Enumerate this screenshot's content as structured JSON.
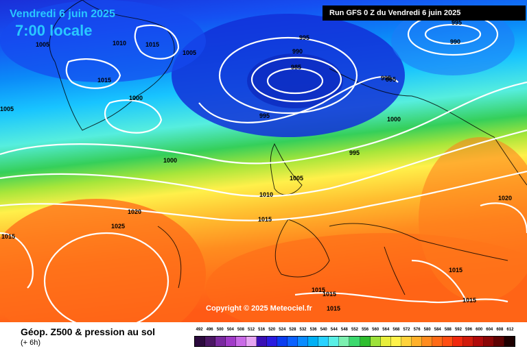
{
  "header": {
    "date": "Vendredi 6 juin 2025",
    "local_time": "7:00 locale",
    "run_info": "Run GFS 0 Z du Vendredi 6 juin 2025"
  },
  "map": {
    "copyright": "Copyright © 2025 Meteociel.fr",
    "isobar_labels": [
      "1005",
      "1005",
      "1010",
      "1015",
      "1005",
      "995",
      "990",
      "985",
      "995",
      "995",
      "1015",
      "995",
      "990",
      "995",
      "1000",
      "1000",
      "1000",
      "995",
      "1005",
      "1010",
      "1015",
      "1020",
      "1025",
      "1015",
      "1020",
      "1015",
      "1015",
      "1015",
      "1015",
      "1015"
    ]
  },
  "legend": {
    "title": "Géop. Z500 & pression au sol",
    "subtitle": "(+ 6h)",
    "scale_values": [
      "492",
      "496",
      "500",
      "504",
      "508",
      "512",
      "516",
      "520",
      "524",
      "528",
      "532",
      "536",
      "540",
      "544",
      "548",
      "552",
      "556",
      "560",
      "564",
      "568",
      "572",
      "576",
      "580",
      "584",
      "588",
      "592",
      "596",
      "600",
      "604",
      "608",
      "612"
    ],
    "scale_colors": [
      "#2b0a3d",
      "#4b1764",
      "#7a2aa0",
      "#a13bc8",
      "#c96ae6",
      "#e7a5f2",
      "#3a0fb5",
      "#2a1ce0",
      "#0b3df0",
      "#0b62ff",
      "#0a8cff",
      "#00b0f5",
      "#28d2ff",
      "#59efe5",
      "#7cf0b0",
      "#3cd96e",
      "#2fbe2f",
      "#9de23a",
      "#e8ef3c",
      "#fff24a",
      "#ffd23b",
      "#ffb02a",
      "#ff8c1f",
      "#ff6b17",
      "#ff4e12",
      "#f0290e",
      "#d11b0b",
      "#b00a0a",
      "#8a0606",
      "#5e0303",
      "#1e0000"
    ]
  },
  "colors": {
    "date_text": "#29c8ff",
    "isobar": "#ffffff"
  }
}
